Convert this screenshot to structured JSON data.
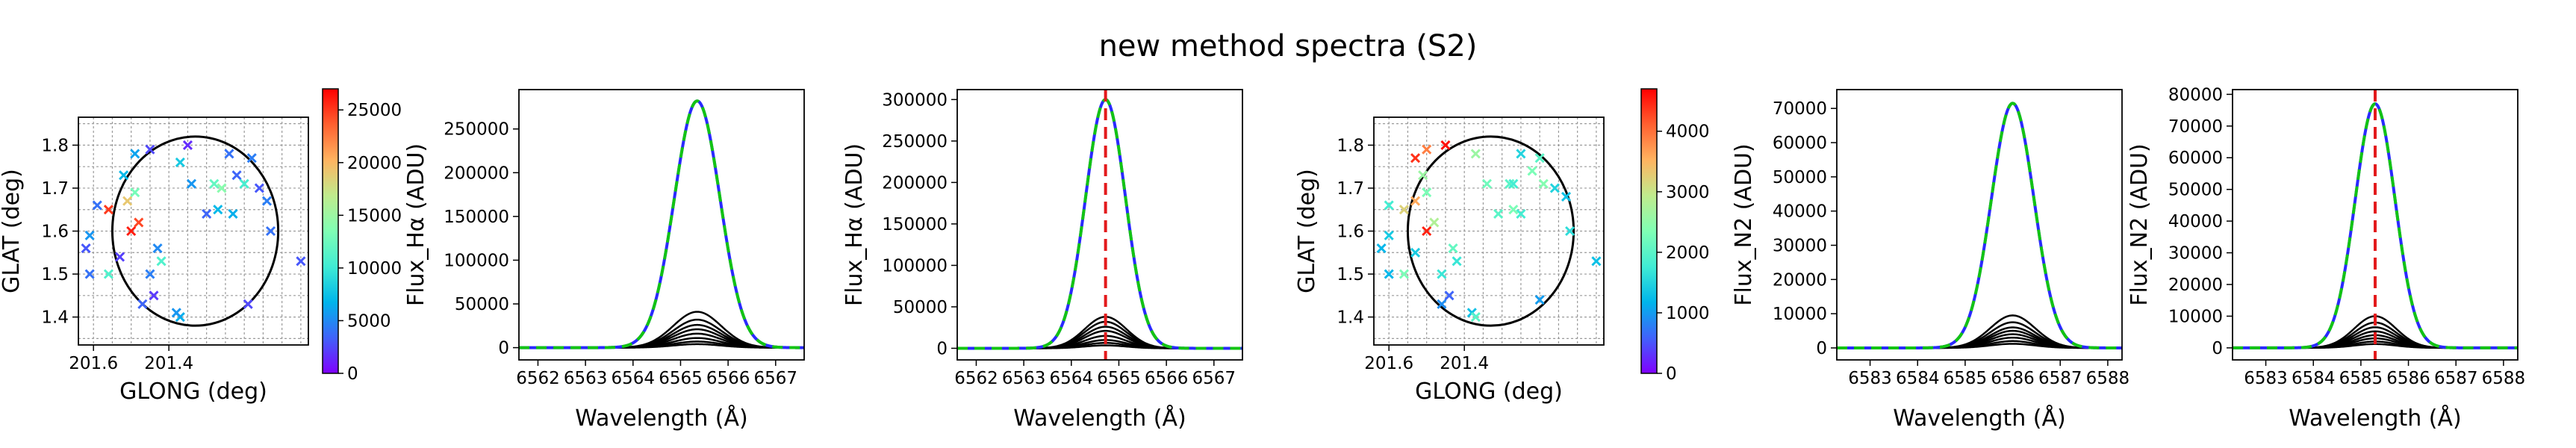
{
  "figure": {
    "title": "new method spectra (S2)"
  },
  "chart_data": [
    {
      "id": "map1",
      "type": "scatter",
      "xlabel": "GLONG (deg)",
      "ylabel": "GLAT (deg)",
      "xlim": [
        201.03,
        201.64
      ],
      "ylim": [
        1.335,
        1.865
      ],
      "xticks": [
        201.6,
        201.4
      ],
      "yticks": [
        1.4,
        1.5,
        1.6,
        1.7,
        1.8
      ],
      "xtick_labels": [
        "201.6",
        "201.4"
      ],
      "xaxis_inverted": true,
      "grid": true,
      "marker": "x",
      "circle": {
        "center_x": 201.33,
        "center_y": 1.6,
        "radius_deg": 0.22
      },
      "colorbar": {
        "min": 0,
        "max": 27000,
        "ticks": [
          0,
          5000,
          10000,
          15000,
          20000,
          25000
        ],
        "colormap": "rainbow"
      },
      "points": [
        {
          "x": 201.35,
          "y": 1.8,
          "v": 1500
        },
        {
          "x": 201.45,
          "y": 1.79,
          "v": 2500
        },
        {
          "x": 201.49,
          "y": 1.78,
          "v": 6000
        },
        {
          "x": 201.37,
          "y": 1.76,
          "v": 8000
        },
        {
          "x": 201.24,
          "y": 1.78,
          "v": 4000
        },
        {
          "x": 201.18,
          "y": 1.77,
          "v": 4500
        },
        {
          "x": 201.22,
          "y": 1.73,
          "v": 3500
        },
        {
          "x": 201.52,
          "y": 1.73,
          "v": 7000
        },
        {
          "x": 201.34,
          "y": 1.71,
          "v": 5500
        },
        {
          "x": 201.28,
          "y": 1.71,
          "v": 12000
        },
        {
          "x": 201.26,
          "y": 1.7,
          "v": 14000
        },
        {
          "x": 201.2,
          "y": 1.71,
          "v": 10500
        },
        {
          "x": 201.16,
          "y": 1.7,
          "v": 3000
        },
        {
          "x": 201.14,
          "y": 1.67,
          "v": 4500
        },
        {
          "x": 201.23,
          "y": 1.64,
          "v": 6500
        },
        {
          "x": 201.49,
          "y": 1.69,
          "v": 13000
        },
        {
          "x": 201.51,
          "y": 1.67,
          "v": 19000
        },
        {
          "x": 201.56,
          "y": 1.65,
          "v": 25000
        },
        {
          "x": 201.59,
          "y": 1.66,
          "v": 4000
        },
        {
          "x": 201.48,
          "y": 1.62,
          "v": 24500
        },
        {
          "x": 201.5,
          "y": 1.6,
          "v": 26000
        },
        {
          "x": 201.61,
          "y": 1.59,
          "v": 5500
        },
        {
          "x": 201.62,
          "y": 1.56,
          "v": 3000
        },
        {
          "x": 201.53,
          "y": 1.54,
          "v": 2200
        },
        {
          "x": 201.43,
          "y": 1.56,
          "v": 5000
        },
        {
          "x": 201.42,
          "y": 1.53,
          "v": 11000
        },
        {
          "x": 201.3,
          "y": 1.64,
          "v": 3500
        },
        {
          "x": 201.27,
          "y": 1.65,
          "v": 7000
        },
        {
          "x": 201.13,
          "y": 1.6,
          "v": 4000
        },
        {
          "x": 201.05,
          "y": 1.53,
          "v": 3000
        },
        {
          "x": 201.56,
          "y": 1.5,
          "v": 11000
        },
        {
          "x": 201.61,
          "y": 1.5,
          "v": 4000
        },
        {
          "x": 201.45,
          "y": 1.5,
          "v": 4500
        },
        {
          "x": 201.47,
          "y": 1.43,
          "v": 3500
        },
        {
          "x": 201.37,
          "y": 1.4,
          "v": 6500
        },
        {
          "x": 201.38,
          "y": 1.41,
          "v": 5500
        },
        {
          "x": 201.19,
          "y": 1.43,
          "v": 2500
        },
        {
          "x": 201.44,
          "y": 1.45,
          "v": 2000
        }
      ]
    },
    {
      "id": "spec1",
      "type": "line",
      "xlabel": "Wavelength (Å)",
      "ylabel": "Flux_Hα (ADU)",
      "xlim": [
        6561.6,
        6567.6
      ],
      "ylim": [
        -14000,
        295000
      ],
      "xticks": [
        6562,
        6563,
        6564,
        6565,
        6566,
        6567
      ],
      "yticks": [
        0,
        50000,
        100000,
        150000,
        200000,
        250000
      ],
      "components": {
        "center": 6565.35,
        "sigma": 0.48,
        "amplitudes": [
          41000,
          32000,
          26000,
          21000,
          16000,
          11000,
          7000,
          4000
        ]
      },
      "total": {
        "center": 6565.35,
        "sigma": 0.48,
        "amplitude": 282000
      },
      "series": [
        {
          "style": "components",
          "color": "#000000"
        },
        {
          "style": "observed",
          "color": "#2a2aff"
        },
        {
          "style": "fit",
          "color": "#13c413"
        }
      ]
    },
    {
      "id": "spec2",
      "type": "line",
      "xlabel": "Wavelength (Å)",
      "ylabel": "Flux_Hα (ADU)",
      "xlim": [
        6561.6,
        6567.6
      ],
      "ylim": [
        -14000,
        312000
      ],
      "xticks": [
        6562,
        6563,
        6564,
        6565,
        6566,
        6567
      ],
      "yticks": [
        0,
        50000,
        100000,
        150000,
        200000,
        250000,
        300000
      ],
      "components": {
        "center": 6564.72,
        "sigma": 0.42,
        "amplitudes": [
          38000,
          32000,
          26000,
          21000,
          15000,
          10000,
          6500,
          3500
        ]
      },
      "total": {
        "center": 6564.72,
        "sigma": 0.42,
        "amplitude": 300000
      },
      "vline": 6564.72,
      "series": [
        {
          "style": "components",
          "color": "#000000"
        },
        {
          "style": "observed",
          "color": "#2a2aff"
        },
        {
          "style": "fit",
          "color": "#13c413"
        },
        {
          "style": "center",
          "color": "#e31a1c"
        }
      ]
    },
    {
      "id": "map2",
      "type": "scatter",
      "xlabel": "GLONG (deg)",
      "ylabel": "GLAT (deg)",
      "xlim": [
        201.03,
        201.64
      ],
      "ylim": [
        1.335,
        1.865
      ],
      "xticks": [
        201.6,
        201.4
      ],
      "yticks": [
        1.4,
        1.5,
        1.6,
        1.7,
        1.8
      ],
      "xtick_labels": [
        "201.6",
        "201.4"
      ],
      "xaxis_inverted": true,
      "grid": true,
      "marker": "x",
      "circle": {
        "center_x": 201.33,
        "center_y": 1.6,
        "radius_deg": 0.22
      },
      "colorbar": {
        "min": 0,
        "max": 4700,
        "ticks": [
          0,
          1000,
          2000,
          3000,
          4000
        ],
        "colormap": "rainbow"
      },
      "points": [
        {
          "x": 201.45,
          "y": 1.8,
          "v": 4600
        },
        {
          "x": 201.5,
          "y": 1.79,
          "v": 3900
        },
        {
          "x": 201.53,
          "y": 1.77,
          "v": 4400
        },
        {
          "x": 201.37,
          "y": 1.78,
          "v": 2600
        },
        {
          "x": 201.25,
          "y": 1.78,
          "v": 1500
        },
        {
          "x": 201.2,
          "y": 1.77,
          "v": 2000
        },
        {
          "x": 201.22,
          "y": 1.74,
          "v": 2300
        },
        {
          "x": 201.51,
          "y": 1.73,
          "v": 2600
        },
        {
          "x": 201.34,
          "y": 1.71,
          "v": 2200
        },
        {
          "x": 201.28,
          "y": 1.71,
          "v": 2000
        },
        {
          "x": 201.27,
          "y": 1.71,
          "v": 1800
        },
        {
          "x": 201.19,
          "y": 1.71,
          "v": 2400
        },
        {
          "x": 201.16,
          "y": 1.7,
          "v": 1500
        },
        {
          "x": 201.13,
          "y": 1.68,
          "v": 1300
        },
        {
          "x": 201.25,
          "y": 1.64,
          "v": 1800
        },
        {
          "x": 201.5,
          "y": 1.69,
          "v": 2300
        },
        {
          "x": 201.53,
          "y": 1.67,
          "v": 3600
        },
        {
          "x": 201.56,
          "y": 1.65,
          "v": 3200
        },
        {
          "x": 201.6,
          "y": 1.66,
          "v": 1800
        },
        {
          "x": 201.48,
          "y": 1.62,
          "v": 2800
        },
        {
          "x": 201.5,
          "y": 1.6,
          "v": 4500
        },
        {
          "x": 201.6,
          "y": 1.59,
          "v": 1400
        },
        {
          "x": 201.62,
          "y": 1.56,
          "v": 1200
        },
        {
          "x": 201.53,
          "y": 1.55,
          "v": 1400
        },
        {
          "x": 201.43,
          "y": 1.56,
          "v": 2100
        },
        {
          "x": 201.42,
          "y": 1.53,
          "v": 1700
        },
        {
          "x": 201.31,
          "y": 1.64,
          "v": 2000
        },
        {
          "x": 201.27,
          "y": 1.65,
          "v": 2300
        },
        {
          "x": 201.12,
          "y": 1.6,
          "v": 1600
        },
        {
          "x": 201.05,
          "y": 1.53,
          "v": 1300
        },
        {
          "x": 201.56,
          "y": 1.5,
          "v": 2300
        },
        {
          "x": 201.6,
          "y": 1.5,
          "v": 1200
        },
        {
          "x": 201.46,
          "y": 1.5,
          "v": 1700
        },
        {
          "x": 201.46,
          "y": 1.43,
          "v": 900
        },
        {
          "x": 201.38,
          "y": 1.41,
          "v": 1300
        },
        {
          "x": 201.37,
          "y": 1.4,
          "v": 2000
        },
        {
          "x": 201.2,
          "y": 1.44,
          "v": 1000
        },
        {
          "x": 201.44,
          "y": 1.45,
          "v": 600
        }
      ]
    },
    {
      "id": "spec3",
      "type": "line",
      "xlabel": "Wavelength (Å)",
      "ylabel": "Flux_N2 (ADU)",
      "xlim": [
        6582.3,
        6588.3
      ],
      "ylim": [
        -3500,
        75500
      ],
      "xticks": [
        6583,
        6584,
        6585,
        6586,
        6587,
        6588
      ],
      "yticks": [
        0,
        10000,
        20000,
        30000,
        40000,
        50000,
        60000,
        70000
      ],
      "components": {
        "center": 6586.0,
        "sigma": 0.45,
        "amplitudes": [
          9500,
          7500,
          6000,
          5000,
          4000,
          3000,
          2000,
          1200
        ]
      },
      "total": {
        "center": 6586.0,
        "sigma": 0.45,
        "amplitude": 71500
      },
      "series": [
        {
          "style": "components",
          "color": "#000000"
        },
        {
          "style": "observed",
          "color": "#2a2aff"
        },
        {
          "style": "fit",
          "color": "#13c413"
        }
      ]
    },
    {
      "id": "spec4",
      "type": "line",
      "xlabel": "Wavelength (Å)",
      "ylabel": "Flux_N2 (ADU)",
      "xlim": [
        6582.3,
        6588.3
      ],
      "ylim": [
        -3800,
        81500
      ],
      "xticks": [
        6583,
        6584,
        6585,
        6586,
        6587,
        6588
      ],
      "yticks": [
        0,
        10000,
        20000,
        30000,
        40000,
        50000,
        60000,
        70000,
        80000
      ],
      "components": {
        "center": 6585.3,
        "sigma": 0.42,
        "amplitudes": [
          10000,
          8000,
          6500,
          5200,
          4000,
          3000,
          2000,
          1200
        ]
      },
      "total": {
        "center": 6585.3,
        "sigma": 0.42,
        "amplitude": 77000
      },
      "vline": 6585.3,
      "series": [
        {
          "style": "components",
          "color": "#000000"
        },
        {
          "style": "observed",
          "color": "#2a2aff"
        },
        {
          "style": "fit",
          "color": "#13c413"
        },
        {
          "style": "center",
          "color": "#e31a1c"
        }
      ]
    }
  ]
}
